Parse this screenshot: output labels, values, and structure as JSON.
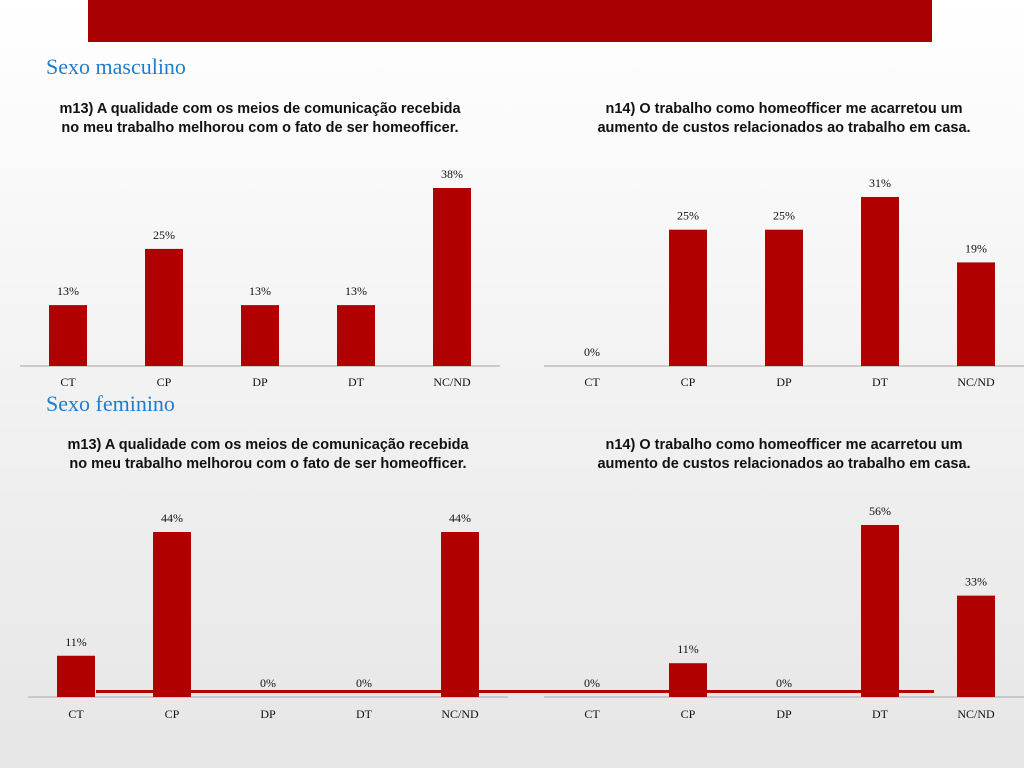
{
  "sections": [
    {
      "title": "Sexo masculino"
    },
    {
      "title": "Sexo feminino"
    }
  ],
  "colors": {
    "bar": "#b00000",
    "banner": "#a80000",
    "section_title": "#1f7ccf",
    "baseline": "#bdbdbd"
  },
  "chart_data": [
    {
      "type": "bar",
      "title": "m13) A qualidade com os meios de comunicação recebida no meu trabalho melhorou com o fato de ser homeofficer.",
      "categories": [
        "CT",
        "CP",
        "DP",
        "DT",
        "NC/ND"
      ],
      "values": [
        13,
        25,
        13,
        13,
        38
      ],
      "value_labels": [
        "13%",
        "25%",
        "13%",
        "13%",
        "38%"
      ],
      "ylim": [
        0,
        38
      ],
      "grid": false,
      "legend": "none"
    },
    {
      "type": "bar",
      "title": "n14) O trabalho como homeofficer me acarretou um aumento de custos relacionados ao trabalho em casa.",
      "categories": [
        "CT",
        "CP",
        "DP",
        "DT",
        "NC/ND"
      ],
      "values": [
        0,
        25,
        25,
        31,
        19
      ],
      "value_labels": [
        "0%",
        "25%",
        "25%",
        "31%",
        "19%"
      ],
      "ylim": [
        0,
        31
      ],
      "grid": false,
      "legend": "none"
    },
    {
      "type": "bar",
      "title": "m13) A qualidade com os meios de comunicação recebida no meu trabalho melhorou com o fato de ser homeofficer.",
      "categories": [
        "CT",
        "CP",
        "DP",
        "DT",
        "NC/ND"
      ],
      "values": [
        11,
        44,
        0,
        0,
        44
      ],
      "value_labels": [
        "11%",
        "44%",
        "0%",
        "0%",
        "44%"
      ],
      "ylim": [
        0,
        44
      ],
      "grid": false,
      "legend": "none"
    },
    {
      "type": "bar",
      "title": "n14) O trabalho como homeofficer me acarretou um aumento de custos relacionados ao trabalho em casa.",
      "categories": [
        "CT",
        "CP",
        "DP",
        "DT",
        "NC/ND"
      ],
      "values": [
        0,
        11,
        0,
        56,
        33
      ],
      "value_labels": [
        "0%",
        "11%",
        "0%",
        "56%",
        "33%"
      ],
      "ylim": [
        0,
        56
      ],
      "grid": false,
      "legend": "none"
    }
  ]
}
